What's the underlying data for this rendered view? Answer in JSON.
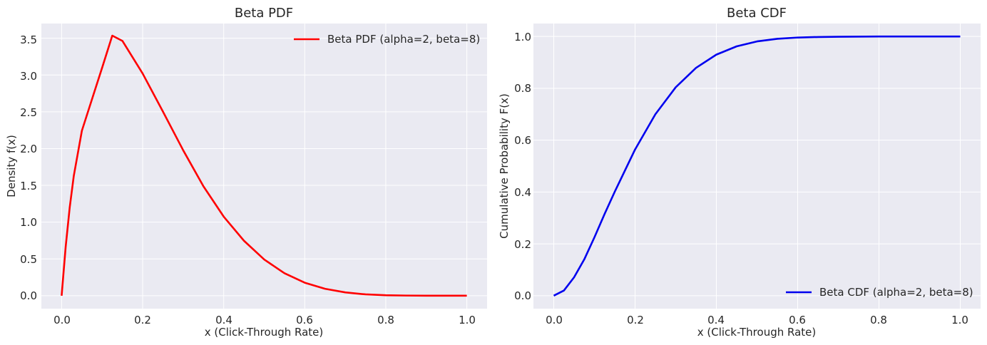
{
  "chart_data": [
    {
      "type": "line",
      "title": "Beta PDF",
      "xlabel": "x (Click-Through Rate)",
      "ylabel": "Density f(x)",
      "xlim": [
        -0.05,
        1.05
      ],
      "ylim": [
        -0.176,
        3.7
      ],
      "xticks": [
        0.0,
        0.2,
        0.4,
        0.6,
        0.8,
        1.0
      ],
      "xtick_labels": [
        "0.0",
        "0.2",
        "0.4",
        "0.6",
        "0.8",
        "1.0"
      ],
      "yticks": [
        0.0,
        0.5,
        1.0,
        1.5,
        2.0,
        2.5,
        3.0,
        3.5
      ],
      "ytick_labels": [
        "0.0",
        "0.5",
        "1.0",
        "1.5",
        "2.0",
        "2.5",
        "3.0",
        "3.5"
      ],
      "grid": true,
      "legend_position": "top-right",
      "series": [
        {
          "name": "Beta PDF (alpha=2, beta=8)",
          "color": "#ff0000",
          "x": [
            0.0,
            0.01,
            0.02,
            0.03,
            0.05,
            0.075,
            0.1,
            0.125,
            0.15,
            0.2,
            0.25,
            0.3,
            0.35,
            0.4,
            0.45,
            0.5,
            0.55,
            0.6,
            0.65,
            0.7,
            0.75,
            0.8,
            0.85,
            0.9,
            0.95,
            1.0
          ],
          "y": [
            0.0,
            0.665,
            1.201,
            1.628,
            2.243,
            2.672,
            3.1,
            3.535,
            3.464,
            3.02,
            2.503,
            1.977,
            1.487,
            1.075,
            0.747,
            0.492,
            0.305,
            0.177,
            0.094,
            0.045,
            0.018,
            0.006,
            0.002,
            0.0,
            0.0,
            0.0
          ]
        }
      ]
    },
    {
      "type": "line",
      "title": "Beta CDF",
      "xlabel": "x (Click-Through Rate)",
      "ylabel": "Cumulative Probability F(x)",
      "xlim": [
        -0.05,
        1.05
      ],
      "ylim": [
        -0.05,
        1.05
      ],
      "xticks": [
        0.0,
        0.2,
        0.4,
        0.6,
        0.8,
        1.0
      ],
      "xtick_labels": [
        "0.0",
        "0.2",
        "0.4",
        "0.6",
        "0.8",
        "1.0"
      ],
      "yticks": [
        0.0,
        0.2,
        0.4,
        0.6,
        0.8,
        1.0
      ],
      "ytick_labels": [
        "0.0",
        "0.2",
        "0.4",
        "0.6",
        "0.8",
        "1.0"
      ],
      "grid": true,
      "legend_position": "bottom-right",
      "series": [
        {
          "name": "Beta CDF (alpha=2, beta=8)",
          "color": "#0000ee",
          "x": [
            0.0,
            0.025,
            0.05,
            0.075,
            0.1,
            0.125,
            0.15,
            0.2,
            0.25,
            0.3,
            0.35,
            0.4,
            0.45,
            0.5,
            0.55,
            0.6,
            0.65,
            0.7,
            0.8,
            0.9,
            1.0
          ],
          "y": [
            0.0,
            0.02,
            0.071,
            0.14,
            0.225,
            0.315,
            0.401,
            0.564,
            0.7,
            0.804,
            0.879,
            0.93,
            0.962,
            0.981,
            0.991,
            0.996,
            0.998,
            0.999,
            1.0,
            1.0,
            1.0
          ]
        }
      ]
    }
  ]
}
